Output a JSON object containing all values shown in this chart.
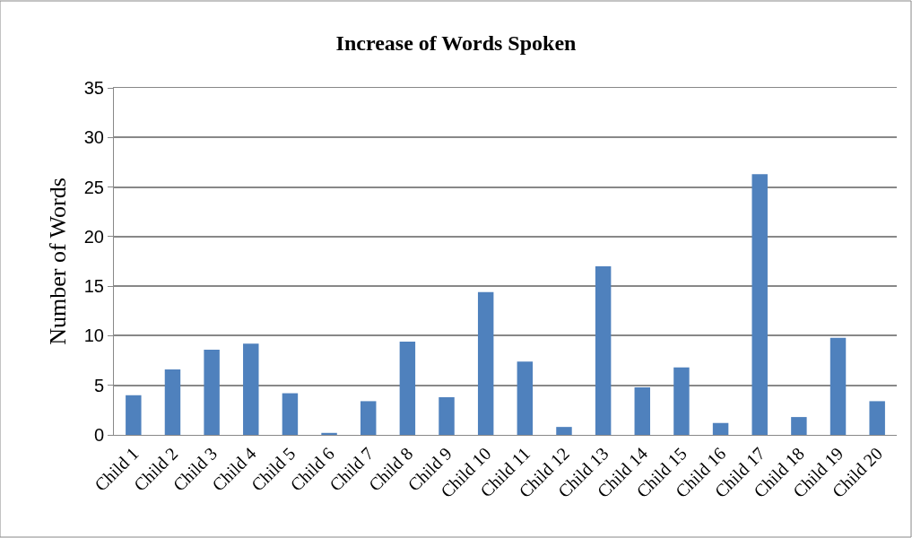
{
  "chart_data": {
    "type": "bar",
    "title": "Increase of Words Spoken",
    "ylabel": "Number of Words",
    "categories": [
      "Child 1",
      "Child 2",
      "Child 3",
      "Child 4",
      "Child 5",
      "Child 6",
      "Child 7",
      "Child 8",
      "Child 9",
      "Child 10",
      "Child 11",
      "Child 12",
      "Child 13",
      "Child 14",
      "Child 15",
      "Child 16",
      "Child 17",
      "Child 18",
      "Child 19",
      "Child 20"
    ],
    "values": [
      4.0,
      6.6,
      8.6,
      9.2,
      4.2,
      0.2,
      3.4,
      9.4,
      3.8,
      14.4,
      7.4,
      0.8,
      17.0,
      4.8,
      6.8,
      1.2,
      26.3,
      1.8,
      9.8,
      3.4
    ],
    "color": "#4f81bd",
    "ylim": [
      0,
      35
    ],
    "yticks": [
      0,
      5,
      10,
      15,
      20,
      25,
      30,
      35
    ],
    "grid": "y"
  }
}
